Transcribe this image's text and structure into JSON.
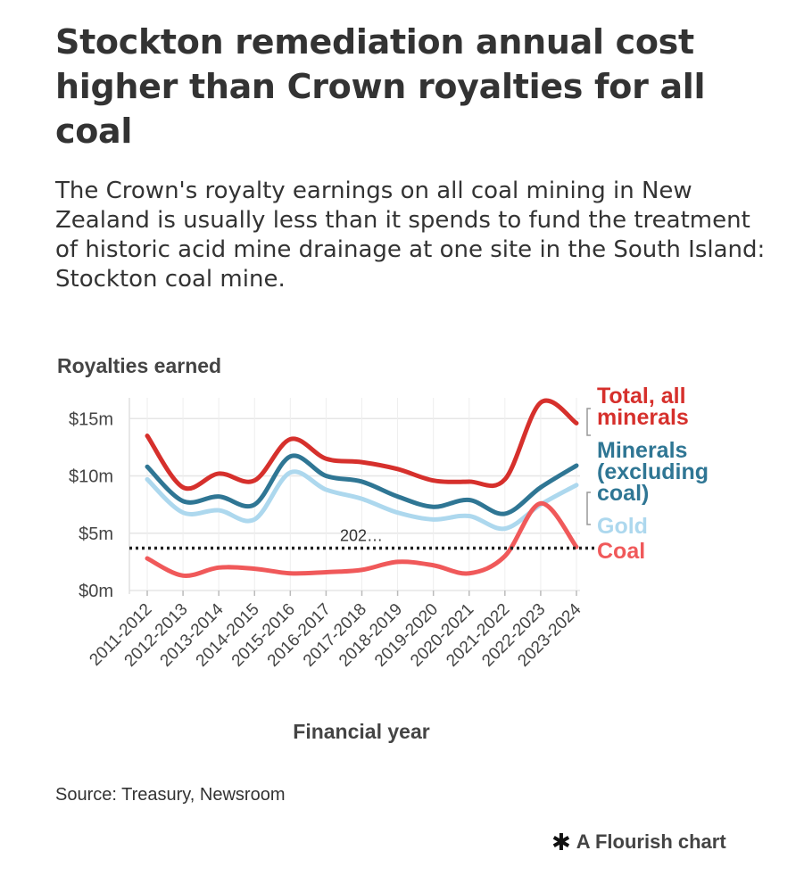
{
  "header": {
    "title": "Stockton remediation annual cost higher than Crown royalties for all coal",
    "subtitle": "The Crown's royalty earnings on all coal mining in New Zealand is usually less than it spends to fund the treatment of historic acid mine drainage at one site in the South Island: Stockton coal mine."
  },
  "footer": {
    "source": "Source: Treasury, Newsroom",
    "credit": "A Flourish chart",
    "credit_icon": "flourish-star-icon"
  },
  "chart_data": {
    "type": "line",
    "ylabel": "Royalties earned",
    "xlabel": "Financial year",
    "ylim": [
      0,
      16.5
    ],
    "y_ticks": [
      0,
      5,
      10,
      15
    ],
    "y_tick_labels": [
      "$0m",
      "$5m",
      "$10m",
      "$15m"
    ],
    "grid": true,
    "legend": "right-inline",
    "categories": [
      "2011-2012",
      "2012-2013",
      "2013-2014",
      "2014-2015",
      "2015-2016",
      "2016-2017",
      "2017-2018",
      "2018-2019",
      "2019-2020",
      "2020-2021",
      "2021-2022",
      "2022-2023",
      "2023-2024"
    ],
    "series": [
      {
        "name": "Gold",
        "color": "#add8ee",
        "values": [
          9.7,
          6.8,
          7.0,
          6.2,
          10.3,
          8.8,
          8.0,
          6.8,
          6.2,
          6.5,
          5.4,
          7.5,
          9.2
        ]
      },
      {
        "name": "Minerals (excluding coal)",
        "color": "#2f7694",
        "values": [
          10.8,
          7.8,
          8.2,
          7.5,
          11.7,
          10.0,
          9.5,
          8.2,
          7.3,
          7.9,
          6.7,
          9.0,
          10.9
        ]
      },
      {
        "name": "Total, all minerals",
        "color": "#d6302c",
        "values": [
          13.5,
          9.0,
          10.2,
          9.6,
          13.2,
          11.5,
          11.2,
          10.6,
          9.6,
          9.5,
          9.7,
          16.4,
          14.6
        ]
      },
      {
        "name": "Coal",
        "color": "#f0595a",
        "values": [
          2.8,
          1.3,
          2.0,
          1.9,
          1.5,
          1.6,
          1.8,
          2.5,
          2.2,
          1.5,
          3.0,
          7.6,
          3.8
        ]
      }
    ],
    "reference_line": {
      "value": 3.7,
      "label": "202…",
      "color": "#222222"
    },
    "legend_labels": [
      {
        "text": "Total, all\nminerals",
        "color": "#d6302c"
      },
      {
        "text": "Minerals\n(excluding\ncoal)",
        "color": "#2f7694"
      },
      {
        "text": "Gold",
        "color": "#add8ee"
      },
      {
        "text": "Coal",
        "color": "#f0595a"
      }
    ]
  }
}
